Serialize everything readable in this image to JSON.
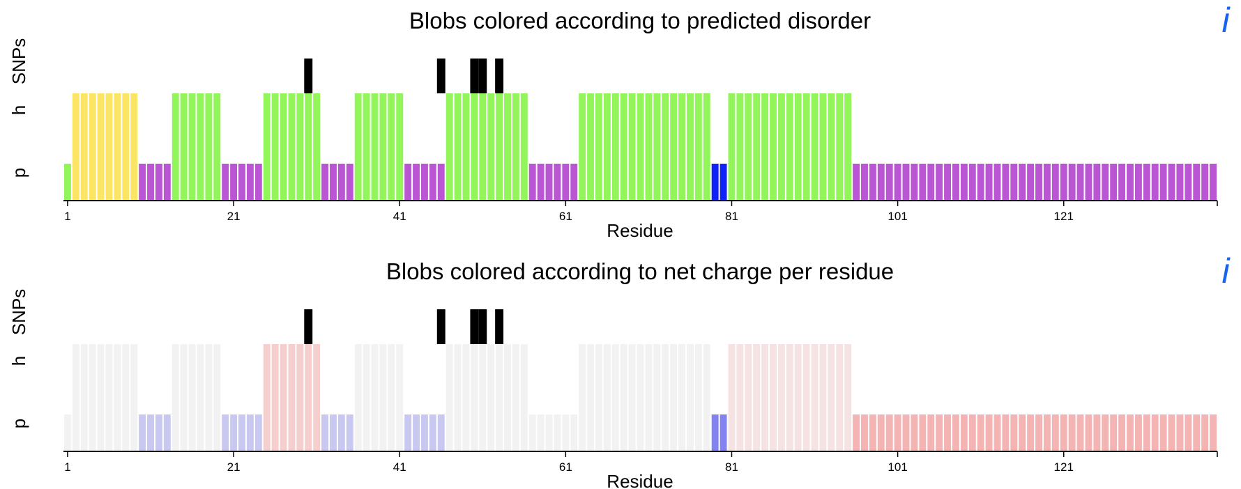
{
  "charts": [
    {
      "title": "Blobs colored according to predicted disorder",
      "ylabels": [
        "SNPs",
        "h",
        "p"
      ],
      "xlabel": "Residue",
      "xticks": [
        "1",
        "21",
        "41",
        "61",
        "81",
        "101",
        "121"
      ],
      "info_icon": "i"
    },
    {
      "title": "Blobs colored according to net charge per residue",
      "ylabels": [
        "SNPs",
        "h",
        "p"
      ],
      "xlabel": "Residue",
      "xticks": [
        "1",
        "21",
        "41",
        "61",
        "81",
        "101",
        "121"
      ],
      "info_icon": "i"
    }
  ],
  "colors": {
    "disorder_yellow": "#FCE464",
    "disorder_green": "#92F65A",
    "disorder_purple": "#BA55D3",
    "disorder_blue": "#1022F9",
    "charge_neutral": "#F2F2F2",
    "charge_lightblue": "#C8C8F0",
    "charge_blue": "#8282F0",
    "charge_pink1": "#F5CECE",
    "charge_pink2": "#F5E2E2",
    "charge_red": "#F5B4B4",
    "snp": "#000000",
    "icon_blue": "#1A63F0"
  },
  "chart_data": [
    {
      "type": "bar",
      "title": "Blobs colored according to predicted disorder",
      "xlabel": "Residue",
      "xlim": [
        1,
        139
      ],
      "ylevels": [
        "p",
        "h",
        "SNPs"
      ],
      "blobs": [
        {
          "start": 1,
          "end": 1,
          "level": "h",
          "color": "#92F65A",
          "height_class": "p"
        },
        {
          "start": 2,
          "end": 9,
          "level": "h",
          "color": "#FCE464"
        },
        {
          "start": 10,
          "end": 13,
          "level": "p",
          "color": "#BA55D3"
        },
        {
          "start": 14,
          "end": 19,
          "level": "h",
          "color": "#92F65A"
        },
        {
          "start": 20,
          "end": 24,
          "level": "p",
          "color": "#BA55D3"
        },
        {
          "start": 25,
          "end": 31,
          "level": "h",
          "color": "#92F65A"
        },
        {
          "start": 32,
          "end": 35,
          "level": "p",
          "color": "#BA55D3"
        },
        {
          "start": 36,
          "end": 41,
          "level": "h",
          "color": "#92F65A"
        },
        {
          "start": 42,
          "end": 46,
          "level": "p",
          "color": "#BA55D3"
        },
        {
          "start": 47,
          "end": 56,
          "level": "h",
          "color": "#92F65A"
        },
        {
          "start": 57,
          "end": 62,
          "level": "p",
          "color": "#BA55D3"
        },
        {
          "start": 63,
          "end": 78,
          "level": "h",
          "color": "#92F65A"
        },
        {
          "start": 79,
          "end": 80,
          "level": "p",
          "color": "#1022F9"
        },
        {
          "start": 81,
          "end": 95,
          "level": "h",
          "color": "#92F65A"
        },
        {
          "start": 96,
          "end": 139,
          "level": "p",
          "color": "#BA55D3"
        }
      ],
      "snps": [
        30,
        46,
        50,
        51,
        53
      ]
    },
    {
      "type": "bar",
      "title": "Blobs colored according to net charge per residue",
      "xlabel": "Residue",
      "xlim": [
        1,
        139
      ],
      "ylevels": [
        "p",
        "h",
        "SNPs"
      ],
      "blobs": [
        {
          "start": 1,
          "end": 1,
          "level": "p",
          "color": "#F2F2F2"
        },
        {
          "start": 2,
          "end": 9,
          "level": "h",
          "color": "#F2F2F2"
        },
        {
          "start": 10,
          "end": 13,
          "level": "p",
          "color": "#C8C8F0"
        },
        {
          "start": 14,
          "end": 19,
          "level": "h",
          "color": "#F2F2F2"
        },
        {
          "start": 20,
          "end": 24,
          "level": "p",
          "color": "#C8C8F0"
        },
        {
          "start": 25,
          "end": 31,
          "level": "h",
          "color": "#F5CECE"
        },
        {
          "start": 32,
          "end": 35,
          "level": "p",
          "color": "#C8C8F0"
        },
        {
          "start": 36,
          "end": 41,
          "level": "h",
          "color": "#F2F2F2"
        },
        {
          "start": 42,
          "end": 46,
          "level": "p",
          "color": "#C8C8F0"
        },
        {
          "start": 47,
          "end": 56,
          "level": "h",
          "color": "#F2F2F2"
        },
        {
          "start": 57,
          "end": 62,
          "level": "p",
          "color": "#F2F2F2"
        },
        {
          "start": 63,
          "end": 78,
          "level": "h",
          "color": "#F2F2F2"
        },
        {
          "start": 79,
          "end": 80,
          "level": "p",
          "color": "#8282F0"
        },
        {
          "start": 81,
          "end": 95,
          "level": "h",
          "color": "#F5E2E2"
        },
        {
          "start": 96,
          "end": 139,
          "level": "p",
          "color": "#F5B4B4"
        }
      ],
      "snps": [
        30,
        46,
        50,
        51,
        53
      ]
    }
  ]
}
